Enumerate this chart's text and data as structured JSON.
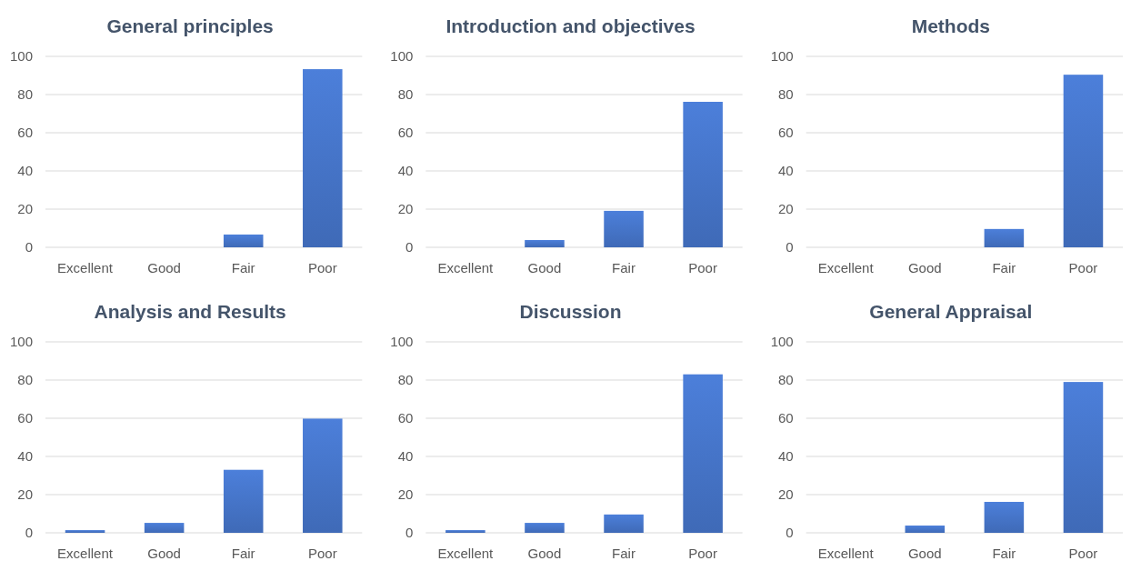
{
  "chart_data": [
    {
      "type": "bar",
      "title": "General principles",
      "categories": [
        "Excellent",
        "Good",
        "Fair",
        "Poor"
      ],
      "values": [
        0,
        0,
        6.7,
        93.3
      ],
      "color": "#4472c4",
      "ylim": [
        0,
        100
      ],
      "yticks": [
        0,
        20,
        40,
        60,
        80,
        100
      ],
      "grid": "y"
    },
    {
      "type": "bar",
      "title": "Introduction and objectives",
      "categories": [
        "Excellent",
        "Good",
        "Fair",
        "Poor"
      ],
      "values": [
        0,
        3.8,
        19.1,
        76.2
      ],
      "color": "#4472c4",
      "ylim": [
        0,
        100
      ],
      "yticks": [
        0,
        20,
        40,
        60,
        80,
        100
      ],
      "grid": "y"
    },
    {
      "type": "bar",
      "title": "Methods",
      "categories": [
        "Excellent",
        "Good",
        "Fair",
        "Poor"
      ],
      "values": [
        0,
        0,
        9.6,
        90.4
      ],
      "color": "#4472c4",
      "ylim": [
        0,
        100
      ],
      "yticks": [
        0,
        20,
        40,
        60,
        80,
        100
      ],
      "grid": "y"
    },
    {
      "type": "bar",
      "title": "Analysis and Results",
      "categories": [
        "Excellent",
        "Good",
        "Fair",
        "Poor"
      ],
      "values": [
        1.4,
        5.2,
        33,
        59.8
      ],
      "color": "#4472c4",
      "ylim": [
        0,
        100
      ],
      "yticks": [
        0,
        20,
        40,
        60,
        80,
        100
      ],
      "grid": "y"
    },
    {
      "type": "bar",
      "title": "Discussion",
      "categories": [
        "Excellent",
        "Good",
        "Fair",
        "Poor"
      ],
      "values": [
        1.4,
        5.2,
        9.6,
        83
      ],
      "color": "#4472c4",
      "ylim": [
        0,
        100
      ],
      "yticks": [
        0,
        20,
        40,
        60,
        80,
        100
      ],
      "grid": "y"
    },
    {
      "type": "bar",
      "title": "General Appraisal",
      "categories": [
        "Excellent",
        "Good",
        "Fair",
        "Poor"
      ],
      "values": [
        0,
        3.8,
        16.2,
        79
      ],
      "color": "#4472c4",
      "ylim": [
        0,
        100
      ],
      "yticks": [
        0,
        20,
        40,
        60,
        80,
        100
      ],
      "grid": "y"
    }
  ]
}
